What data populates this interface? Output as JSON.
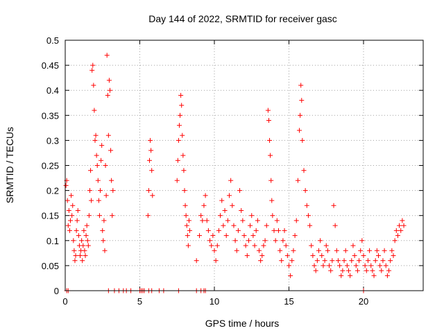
{
  "chart_data": {
    "type": "scatter",
    "title": "Day 144 of 2022, SRMTID for receiver gasc",
    "xlabel": "GPS time / hours",
    "ylabel": "SRMTID / TECUs",
    "xlim": [
      0,
      24
    ],
    "ylim": [
      0,
      0.5
    ],
    "xticks": [
      0,
      5,
      10,
      15,
      20
    ],
    "xtick_labels": [
      "0",
      "5",
      "10",
      "15",
      "20"
    ],
    "yticks": [
      0,
      0.05,
      0.1,
      0.15,
      0.2,
      0.25,
      0.3,
      0.35,
      0.4,
      0.45,
      0.5
    ],
    "ytick_labels": [
      "0",
      "0.05",
      "0.1",
      "0.15",
      "0.2",
      "0.25",
      "0.3",
      "0.35",
      "0.4",
      "0.45",
      "0.5"
    ],
    "grid": true,
    "marker": "+",
    "color": "#ff0000",
    "series": [
      {
        "name": "SRMTID",
        "points": [
          [
            0.05,
            0.21
          ],
          [
            0.1,
            0.22
          ],
          [
            0.15,
            0.18
          ],
          [
            0.2,
            0.13
          ],
          [
            0.25,
            0.16
          ],
          [
            0.3,
            0.12
          ],
          [
            0.35,
            0.14
          ],
          [
            0.4,
            0.19
          ],
          [
            0.45,
            0.15
          ],
          [
            0.5,
            0.17
          ],
          [
            0.55,
            0.1
          ],
          [
            0.6,
            0.08
          ],
          [
            0.65,
            0.06
          ],
          [
            0.7,
            0.07
          ],
          [
            0.75,
            0.12
          ],
          [
            0.8,
            0.14
          ],
          [
            0.85,
            0.16
          ],
          [
            0.9,
            0.11
          ],
          [
            0.95,
            0.09
          ],
          [
            1.0,
            0.07
          ],
          [
            1.05,
            0.08
          ],
          [
            1.1,
            0.1
          ],
          [
            1.15,
            0.06
          ],
          [
            1.2,
            0.09
          ],
          [
            1.25,
            0.12
          ],
          [
            1.3,
            0.08
          ],
          [
            1.35,
            0.07
          ],
          [
            1.4,
            0.11
          ],
          [
            1.45,
            0.13
          ],
          [
            1.5,
            0.1
          ],
          [
            1.55,
            0.09
          ],
          [
            1.6,
            0.15
          ],
          [
            1.65,
            0.2
          ],
          [
            1.7,
            0.24
          ],
          [
            1.75,
            0.18
          ],
          [
            1.8,
            0.44
          ],
          [
            1.85,
            0.45
          ],
          [
            1.9,
            0.41
          ],
          [
            1.95,
            0.36
          ],
          [
            2.0,
            0.3
          ],
          [
            2.05,
            0.31
          ],
          [
            2.1,
            0.27
          ],
          [
            2.15,
            0.25
          ],
          [
            2.2,
            0.22
          ],
          [
            2.25,
            0.18
          ],
          [
            2.3,
            0.15
          ],
          [
            2.35,
            0.2
          ],
          [
            2.4,
            0.26
          ],
          [
            2.45,
            0.29
          ],
          [
            2.5,
            0.12
          ],
          [
            2.55,
            0.1
          ],
          [
            2.6,
            0.14
          ],
          [
            2.65,
            0.08
          ],
          [
            2.7,
            0.25
          ],
          [
            2.75,
            0.19
          ],
          [
            2.8,
            0.47
          ],
          [
            2.85,
            0.39
          ],
          [
            2.9,
            0.31
          ],
          [
            2.95,
            0.42
          ],
          [
            3.0,
            0.4
          ],
          [
            3.05,
            0.28
          ],
          [
            3.1,
            0.22
          ],
          [
            3.15,
            0.15
          ],
          [
            3.2,
            0.2
          ],
          [
            5.55,
            0.15
          ],
          [
            5.6,
            0.2
          ],
          [
            5.65,
            0.26
          ],
          [
            5.7,
            0.3
          ],
          [
            5.75,
            0.28
          ],
          [
            5.8,
            0.24
          ],
          [
            5.85,
            0.19
          ],
          [
            7.5,
            0.22
          ],
          [
            7.55,
            0.26
          ],
          [
            7.6,
            0.3
          ],
          [
            7.65,
            0.33
          ],
          [
            7.7,
            0.35
          ],
          [
            7.75,
            0.39
          ],
          [
            7.8,
            0.37
          ],
          [
            7.85,
            0.31
          ],
          [
            7.9,
            0.27
          ],
          [
            7.95,
            0.24
          ],
          [
            8.0,
            0.2
          ],
          [
            8.05,
            0.17
          ],
          [
            8.1,
            0.15
          ],
          [
            8.15,
            0.13
          ],
          [
            8.2,
            0.11
          ],
          [
            8.25,
            0.09
          ],
          [
            8.3,
            0.14
          ],
          [
            8.35,
            0.12
          ],
          [
            8.8,
            0.06
          ],
          [
            9.0,
            0.11
          ],
          [
            9.1,
            0.15
          ],
          [
            9.2,
            0.14
          ],
          [
            9.3,
            0.17
          ],
          [
            9.4,
            0.19
          ],
          [
            9.5,
            0.14
          ],
          [
            9.6,
            0.12
          ],
          [
            9.7,
            0.1
          ],
          [
            9.8,
            0.09
          ],
          [
            9.9,
            0.11
          ],
          [
            10.0,
            0.08
          ],
          [
            10.1,
            0.06
          ],
          [
            10.2,
            0.09
          ],
          [
            10.3,
            0.12
          ],
          [
            10.4,
            0.15
          ],
          [
            10.5,
            0.18
          ],
          [
            10.6,
            0.13
          ],
          [
            10.7,
            0.16
          ],
          [
            10.8,
            0.11
          ],
          [
            10.9,
            0.14
          ],
          [
            11.0,
            0.19
          ],
          [
            11.1,
            0.22
          ],
          [
            11.2,
            0.17
          ],
          [
            11.3,
            0.13
          ],
          [
            11.4,
            0.1
          ],
          [
            11.5,
            0.08
          ],
          [
            11.6,
            0.12
          ],
          [
            11.7,
            0.2
          ],
          [
            11.8,
            0.16
          ],
          [
            11.9,
            0.14
          ],
          [
            12.0,
            0.11
          ],
          [
            12.1,
            0.09
          ],
          [
            12.2,
            0.07
          ],
          [
            12.3,
            0.1
          ],
          [
            12.4,
            0.13
          ],
          [
            12.5,
            0.15
          ],
          [
            12.6,
            0.11
          ],
          [
            12.7,
            0.09
          ],
          [
            12.8,
            0.12
          ],
          [
            12.9,
            0.14
          ],
          [
            13.0,
            0.08
          ],
          [
            13.1,
            0.06
          ],
          [
            13.2,
            0.07
          ],
          [
            13.3,
            0.09
          ],
          [
            13.4,
            0.1
          ],
          [
            13.5,
            0.13
          ],
          [
            13.6,
            0.36
          ],
          [
            13.65,
            0.34
          ],
          [
            13.7,
            0.3
          ],
          [
            13.75,
            0.27
          ],
          [
            13.8,
            0.22
          ],
          [
            13.85,
            0.18
          ],
          [
            13.9,
            0.15
          ],
          [
            14.0,
            0.12
          ],
          [
            14.1,
            0.1
          ],
          [
            14.2,
            0.14
          ],
          [
            14.3,
            0.12
          ],
          [
            14.4,
            0.08
          ],
          [
            14.5,
            0.06
          ],
          [
            14.6,
            0.1
          ],
          [
            14.7,
            0.12
          ],
          [
            14.8,
            0.09
          ],
          [
            14.9,
            0.07
          ],
          [
            15.0,
            0.05
          ],
          [
            15.1,
            0.03
          ],
          [
            15.2,
            0.06
          ],
          [
            15.3,
            0.08
          ],
          [
            15.4,
            0.11
          ],
          [
            15.5,
            0.14
          ],
          [
            15.6,
            0.22
          ],
          [
            15.7,
            0.32
          ],
          [
            15.75,
            0.35
          ],
          [
            15.8,
            0.41
          ],
          [
            15.85,
            0.38
          ],
          [
            15.9,
            0.3
          ],
          [
            16.0,
            0.24
          ],
          [
            16.1,
            0.2
          ],
          [
            16.2,
            0.17
          ],
          [
            16.3,
            0.15
          ],
          [
            16.4,
            0.13
          ],
          [
            16.5,
            0.09
          ],
          [
            16.6,
            0.07
          ],
          [
            16.7,
            0.05
          ],
          [
            16.8,
            0.04
          ],
          [
            16.9,
            0.06
          ],
          [
            17.0,
            0.08
          ],
          [
            17.1,
            0.1
          ],
          [
            17.2,
            0.07
          ],
          [
            17.3,
            0.05
          ],
          [
            17.4,
            0.06
          ],
          [
            17.5,
            0.09
          ],
          [
            17.6,
            0.08
          ],
          [
            17.7,
            0.05
          ],
          [
            17.8,
            0.04
          ],
          [
            17.9,
            0.06
          ],
          [
            18.0,
            0.17
          ],
          [
            18.1,
            0.13
          ],
          [
            18.2,
            0.08
          ],
          [
            18.3,
            0.06
          ],
          [
            18.4,
            0.05
          ],
          [
            18.5,
            0.03
          ],
          [
            18.6,
            0.04
          ],
          [
            18.7,
            0.06
          ],
          [
            18.8,
            0.08
          ],
          [
            18.9,
            0.05
          ],
          [
            19.0,
            0.04
          ],
          [
            19.1,
            0.03
          ],
          [
            19.2,
            0.06
          ],
          [
            19.3,
            0.09
          ],
          [
            19.4,
            0.07
          ],
          [
            19.5,
            0.05
          ],
          [
            19.6,
            0.04
          ],
          [
            19.7,
            0.06
          ],
          [
            19.8,
            0.08
          ],
          [
            19.9,
            0.1
          ],
          [
            20.0,
            0.07
          ],
          [
            20.1,
            0.05
          ],
          [
            20.2,
            0.04
          ],
          [
            20.3,
            0.06
          ],
          [
            20.4,
            0.08
          ],
          [
            20.5,
            0.05
          ],
          [
            20.6,
            0.04
          ],
          [
            20.7,
            0.03
          ],
          [
            20.8,
            0.06
          ],
          [
            20.9,
            0.08
          ],
          [
            21.0,
            0.07
          ],
          [
            21.1,
            0.05
          ],
          [
            21.2,
            0.04
          ],
          [
            21.3,
            0.06
          ],
          [
            21.4,
            0.08
          ],
          [
            21.5,
            0.05
          ],
          [
            21.6,
            0.03
          ],
          [
            21.7,
            0.04
          ],
          [
            21.8,
            0.06
          ],
          [
            21.9,
            0.08
          ],
          [
            22.0,
            0.07
          ],
          [
            22.1,
            0.1
          ],
          [
            22.2,
            0.12
          ],
          [
            22.3,
            0.11
          ],
          [
            22.4,
            0.13
          ],
          [
            22.5,
            0.12
          ],
          [
            22.6,
            0.14
          ],
          [
            22.7,
            0.13
          ],
          [
            0.1,
            0.0
          ],
          [
            0.2,
            0.0
          ],
          [
            2.9,
            0.0
          ],
          [
            3.3,
            0.0
          ],
          [
            3.6,
            0.0
          ],
          [
            3.9,
            0.0
          ],
          [
            4.1,
            0.0
          ],
          [
            4.4,
            0.0
          ],
          [
            5.0,
            0.0
          ],
          [
            5.1,
            0.0
          ],
          [
            5.2,
            0.0
          ],
          [
            5.3,
            0.0
          ],
          [
            5.6,
            0.0
          ],
          [
            5.8,
            0.0
          ],
          [
            6.3,
            0.0
          ],
          [
            6.6,
            0.0
          ],
          [
            7.6,
            0.0
          ],
          [
            8.8,
            0.0
          ],
          [
            9.1,
            0.0
          ],
          [
            9.3,
            0.0
          ],
          [
            9.4,
            0.0
          ],
          [
            20.0,
            0.0
          ]
        ]
      }
    ]
  }
}
